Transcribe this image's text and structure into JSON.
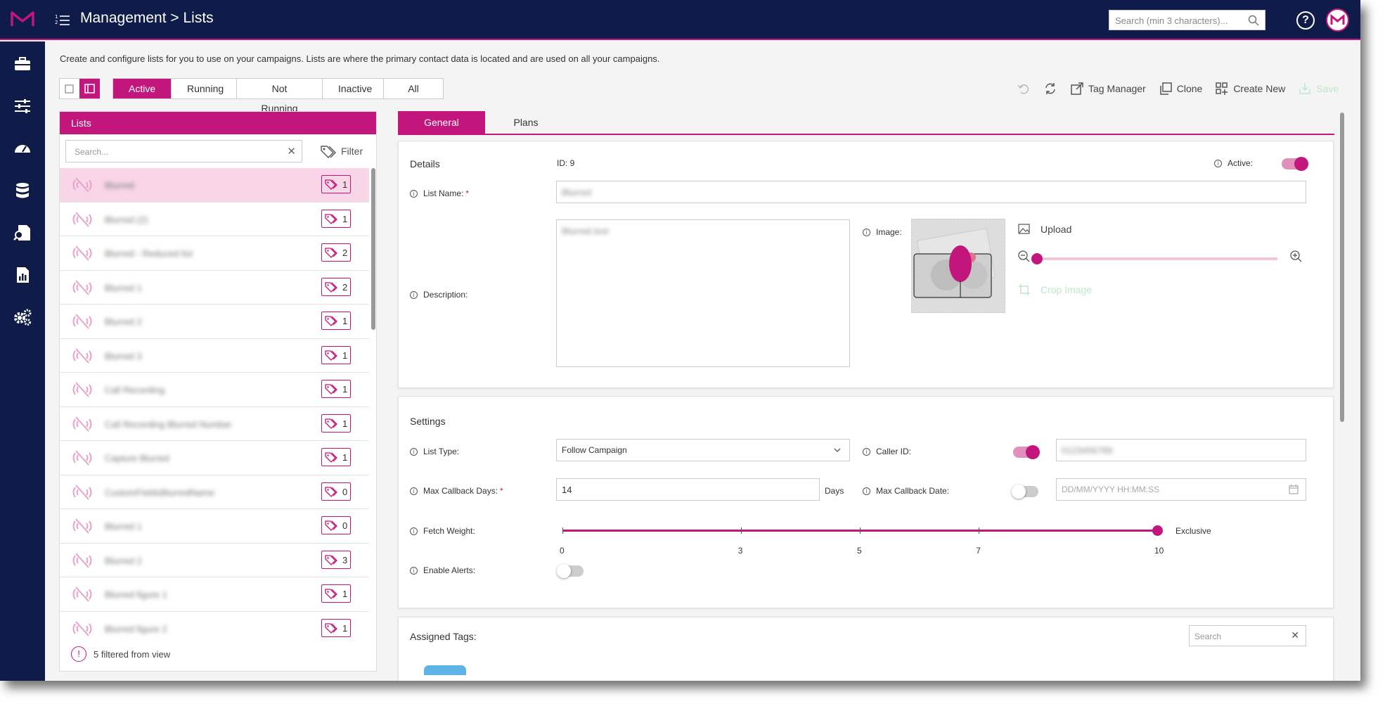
{
  "header": {
    "title": "Management > Lists",
    "search_placeholder": "Search (min 3 characters)...",
    "help_label": "?"
  },
  "intro": "Create and configure lists for you to use on your campaigns. Lists are where the primary contact data is located and are used on all your campaigns.",
  "status_tabs": [
    "Active",
    "Running",
    "Not Running",
    "Inactive",
    "All"
  ],
  "toolbar": {
    "tag_manager": "Tag Manager",
    "clone": "Clone",
    "create_new": "Create New",
    "save": "Save"
  },
  "lists": {
    "header": "Lists",
    "search_placeholder": "Search...",
    "filter_label": "Filter",
    "rows": [
      {
        "name": "Blurred",
        "tags": "1"
      },
      {
        "name": "Blurred (2)",
        "tags": "1"
      },
      {
        "name": "Blurred - Reduced list",
        "tags": "2"
      },
      {
        "name": "Blurred 1",
        "tags": "2"
      },
      {
        "name": "Blurred 2",
        "tags": "1"
      },
      {
        "name": "Blurred 3",
        "tags": "1"
      },
      {
        "name": "Call Recording",
        "tags": "1"
      },
      {
        "name": "Call Recording Blurred Number",
        "tags": "1"
      },
      {
        "name": "Capture Blurred",
        "tags": "1"
      },
      {
        "name": "CustomFieldsBlurredName",
        "tags": "0"
      },
      {
        "name": "Blurred 1",
        "tags": "0"
      },
      {
        "name": "Blurred 2",
        "tags": "3"
      },
      {
        "name": "Blurred figure 1",
        "tags": "1"
      },
      {
        "name": "Blurred figure 2",
        "tags": "1"
      }
    ],
    "filtered_note": "5 filtered from view",
    "warn_glyph": "!"
  },
  "detail_tabs": [
    "General",
    "Plans"
  ],
  "details": {
    "title": "Details",
    "id_text": "ID: 9",
    "active_label": "Active:",
    "list_name_label": "List Name:",
    "list_name_value": "Blurred",
    "description_label": "Description:",
    "description_value": "Blurred text",
    "image_label": "Image:",
    "upload_label": "Upload",
    "crop_label": "Crop Image",
    "active_on": true,
    "zoom_level": 0
  },
  "settings": {
    "title": "Settings",
    "list_type_label": "List Type:",
    "list_type_value": "Follow Campaign",
    "caller_id_label": "Caller ID:",
    "caller_id_value": "0123456789",
    "max_callback_days_label": "Max Callback Days:",
    "max_callback_days_value": "14",
    "days_suffix": "Days",
    "max_callback_date_label": "Max Callback Date:",
    "max_callback_date_placeholder": "DD/MM/YYYY HH:MM:SS",
    "fetch_weight_label": "Fetch Weight:",
    "fetch_weight_value": 10,
    "fetch_weight_ticks": [
      "0",
      "3",
      "5",
      "7",
      "10"
    ],
    "exclusive_label": "Exclusive",
    "enable_alerts_label": "Enable Alerts:",
    "caller_id_on": true,
    "max_callback_date_on": false,
    "enable_alerts_on": false
  },
  "assigned_tags": {
    "title": "Assigned Tags:",
    "search_placeholder": "Search"
  },
  "colors": {
    "brand": "#c2167d",
    "navy": "#0f1b48"
  }
}
